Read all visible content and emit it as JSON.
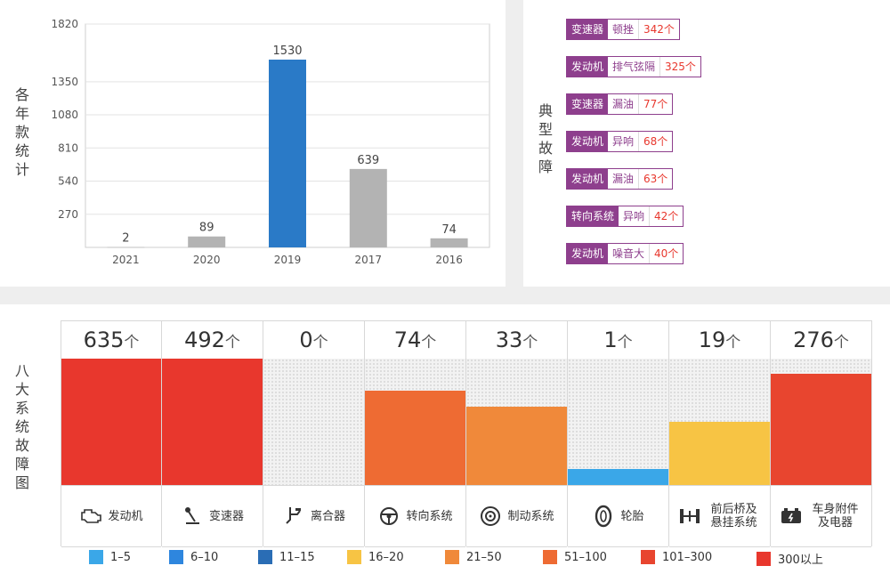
{
  "year_panel": {
    "side_label": "各年款统计",
    "top_partial": "· · ·"
  },
  "fault_panel": {
    "side_label": "典型故障",
    "items": [
      {
        "system": "变速器",
        "issue": "顿挫",
        "count": "342个"
      },
      {
        "system": "发动机",
        "issue": "排气弦隔",
        "count": "325个"
      },
      {
        "system": "变速器",
        "issue": "漏油",
        "count": "77个"
      },
      {
        "system": "发动机",
        "issue": "异响",
        "count": "68个"
      },
      {
        "system": "发动机",
        "issue": "漏油",
        "count": "63个"
      },
      {
        "system": "转向系统",
        "issue": "异响",
        "count": "42个"
      },
      {
        "system": "发动机",
        "issue": "噪音大",
        "count": "40个"
      }
    ]
  },
  "systems_panel": {
    "side_label": "八大系统故障图",
    "unit": "个",
    "systems": [
      {
        "name": "发动机",
        "count": "635",
        "icon": "engine-icon",
        "color": "#e8372d",
        "level": 1.0
      },
      {
        "name": "变速器",
        "count": "492",
        "icon": "gear-shift-icon",
        "color": "#e8372d",
        "level": 1.0
      },
      {
        "name": "离合器",
        "count": "0",
        "icon": "clutch-pedal-icon",
        "color": "",
        "level": 0
      },
      {
        "name": "转向系统",
        "count": "74",
        "icon": "steering-wheel-icon",
        "color": "#ee6b33",
        "level": 0.75
      },
      {
        "name": "制动系统",
        "count": "33",
        "icon": "brake-disc-icon",
        "color": "#f0893a",
        "level": 0.62
      },
      {
        "name": "轮胎",
        "count": "1",
        "icon": "tire-icon",
        "color": "#3aa7e8",
        "level": 0.13
      },
      {
        "name": "前后桥及悬挂系统",
        "count": "19",
        "icon": "axle-icon",
        "color": "#f7c444",
        "level": 0.5
      },
      {
        "name": "车身附件及电器",
        "count": "276",
        "icon": "battery-icon",
        "color": "#e8452f",
        "level": 0.88
      }
    ]
  },
  "legend": [
    {
      "label": "1–5",
      "color": "#3aa7e8"
    },
    {
      "label": "6–10",
      "color": "#2e86de"
    },
    {
      "label": "11–15",
      "color": "#2a6db5"
    },
    {
      "label": "16–20",
      "color": "#f7c444"
    },
    {
      "label": "21–50",
      "color": "#f0893a"
    },
    {
      "label": "51–100",
      "color": "#ee6b33"
    },
    {
      "label": "101–300",
      "color": "#e8452f"
    },
    {
      "label": "300以上",
      "color": "#e8372d"
    }
  ],
  "chart_data": {
    "type": "bar",
    "categories": [
      "2021",
      "2020",
      "2019",
      "2017",
      "2016"
    ],
    "values": [
      2,
      89,
      1530,
      639,
      74
    ],
    "value_labels": [
      "2",
      "89",
      "1530",
      "639",
      "74"
    ],
    "yticks": [
      270,
      540,
      810,
      1080,
      1350,
      1820
    ],
    "ylim": [
      0,
      1820
    ],
    "bar_colors": [
      "#b3b3b3",
      "#b3b3b3",
      "#2a7ac7",
      "#b3b3b3",
      "#b3b3b3"
    ],
    "grid": true,
    "xlabel": "",
    "ylabel": "各年款统计"
  }
}
